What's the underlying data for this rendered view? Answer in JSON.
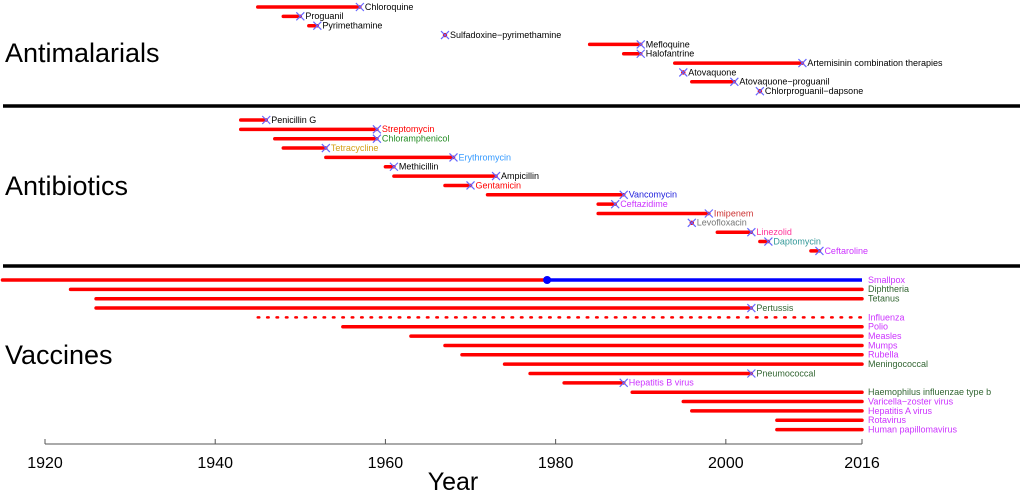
{
  "chart_data": {
    "type": "timeline",
    "xlabel": "Year",
    "xlim": [
      1915,
      2016
    ],
    "xticks": [
      "1920",
      "1940",
      "1960",
      "1980",
      "2000",
      "2016"
    ],
    "colors": {
      "bar": "#ff0000",
      "marker": "#6666ff",
      "eradicated": "#0000ff",
      "separator": "#000000"
    },
    "sections": [
      {
        "title": "Antimalarials",
        "items": [
          {
            "name": "Chloroquine",
            "start": 1945,
            "end": 1957,
            "color": "#000000",
            "resistance": true
          },
          {
            "name": "Proguanil",
            "start": 1948,
            "end": 1950,
            "color": "#000000",
            "resistance": true
          },
          {
            "name": "Pyrimethamine",
            "start": 1951,
            "end": 1952,
            "color": "#000000",
            "resistance": true
          },
          {
            "name": "Sulfadoxine−pyrimethamine",
            "start": 1967,
            "end": 1967,
            "color": "#000000",
            "resistance": true
          },
          {
            "name": "Mefloquine",
            "start": 1984,
            "end": 1990,
            "color": "#000000",
            "resistance": true
          },
          {
            "name": "Halofantrine",
            "start": 1988,
            "end": 1990,
            "color": "#000000",
            "resistance": true
          },
          {
            "name": "Artemisinin combination therapies",
            "start": 1994,
            "end": 2009,
            "color": "#000000",
            "resistance": true
          },
          {
            "name": "Atovaquone",
            "start": 1995,
            "end": 1995,
            "color": "#000000",
            "resistance": true
          },
          {
            "name": "Atovaquone−proguanil",
            "start": 1996,
            "end": 2001,
            "color": "#000000",
            "resistance": true
          },
          {
            "name": "Chlorproguanil−dapsone",
            "start": 2004,
            "end": 2004,
            "color": "#000000",
            "resistance": true
          }
        ]
      },
      {
        "title": "Antibiotics",
        "items": [
          {
            "name": "Penicillin G",
            "start": 1943,
            "end": 1946,
            "color": "#000000",
            "resistance": true
          },
          {
            "name": "Streptomycin",
            "start": 1943,
            "end": 1959,
            "color": "#ff0000",
            "resistance": true
          },
          {
            "name": "Chloramphenicol",
            "start": 1947,
            "end": 1959,
            "color": "#228b22",
            "resistance": true
          },
          {
            "name": "Tetracycline",
            "start": 1948,
            "end": 1953,
            "color": "#d4a017",
            "resistance": true
          },
          {
            "name": "Erythromycin",
            "start": 1953,
            "end": 1968,
            "color": "#3399ff",
            "resistance": true
          },
          {
            "name": "Methicillin",
            "start": 1960,
            "end": 1961,
            "color": "#000000",
            "resistance": true
          },
          {
            "name": "Ampicillin",
            "start": 1961,
            "end": 1973,
            "color": "#000000",
            "resistance": true
          },
          {
            "name": "Gentamicin",
            "start": 1967,
            "end": 1970,
            "color": "#ff0000",
            "resistance": true
          },
          {
            "name": "Vancomycin",
            "start": 1972,
            "end": 1988,
            "color": "#2222dd",
            "resistance": true
          },
          {
            "name": "Ceftazidime",
            "start": 1985,
            "end": 1987,
            "color": "#cc33ff",
            "resistance": true
          },
          {
            "name": "Imipenem",
            "start": 1985,
            "end": 1998,
            "color": "#cc3333",
            "resistance": true
          },
          {
            "name": "Levofloxacin",
            "start": 1996,
            "end": 1996,
            "color": "#777777",
            "resistance": true
          },
          {
            "name": "Linezolid",
            "start": 1999,
            "end": 2003,
            "color": "#ff3399",
            "resistance": true
          },
          {
            "name": "Daptomycin",
            "start": 2004,
            "end": 2005,
            "color": "#339999",
            "resistance": true
          },
          {
            "name": "Ceftaroline",
            "start": 2010,
            "end": 2011,
            "color": "#cc33ff",
            "resistance": true
          }
        ]
      },
      {
        "title": "Vaccines",
        "items": [
          {
            "name": "Smallpox",
            "start": 1915,
            "end": 2016,
            "color": "#cc33ff",
            "eradicated": 1979
          },
          {
            "name": "Diphtheria",
            "start": 1923,
            "end": 2016,
            "color": "#336633"
          },
          {
            "name": "Tetanus",
            "start": 1926,
            "end": 2016,
            "color": "#336633"
          },
          {
            "name": "Pertussis",
            "start": 1926,
            "end": 2003,
            "color": "#336633",
            "resistance": true
          },
          {
            "name": "Influenza",
            "start": 1945,
            "end": 2016,
            "color": "#cc33ff",
            "dotted": true
          },
          {
            "name": "Polio",
            "start": 1955,
            "end": 2016,
            "color": "#cc33ff"
          },
          {
            "name": "Measles",
            "start": 1963,
            "end": 2016,
            "color": "#cc33ff"
          },
          {
            "name": "Mumps",
            "start": 1967,
            "end": 2016,
            "color": "#cc33ff"
          },
          {
            "name": "Rubella",
            "start": 1969,
            "end": 2016,
            "color": "#cc33ff"
          },
          {
            "name": "Meningococcal",
            "start": 1974,
            "end": 2016,
            "color": "#336633"
          },
          {
            "name": "Pneumococcal",
            "start": 1977,
            "end": 2003,
            "color": "#336633",
            "resistance": true
          },
          {
            "name": "Hepatitis B virus",
            "start": 1981,
            "end": 1988,
            "color": "#cc33ff",
            "resistance": true
          },
          {
            "name": "Haemophilus influenzae type b",
            "start": 1989,
            "end": 2016,
            "color": "#336633"
          },
          {
            "name": "Varicella−zoster virus",
            "start": 1995,
            "end": 2016,
            "color": "#cc33ff"
          },
          {
            "name": "Hepatitis A virus",
            "start": 1996,
            "end": 2016,
            "color": "#cc33ff"
          },
          {
            "name": "Rotavirus",
            "start": 2006,
            "end": 2016,
            "color": "#cc33ff"
          },
          {
            "name": "Human papillomavirus",
            "start": 2006,
            "end": 2016,
            "color": "#cc33ff"
          }
        ]
      }
    ]
  }
}
